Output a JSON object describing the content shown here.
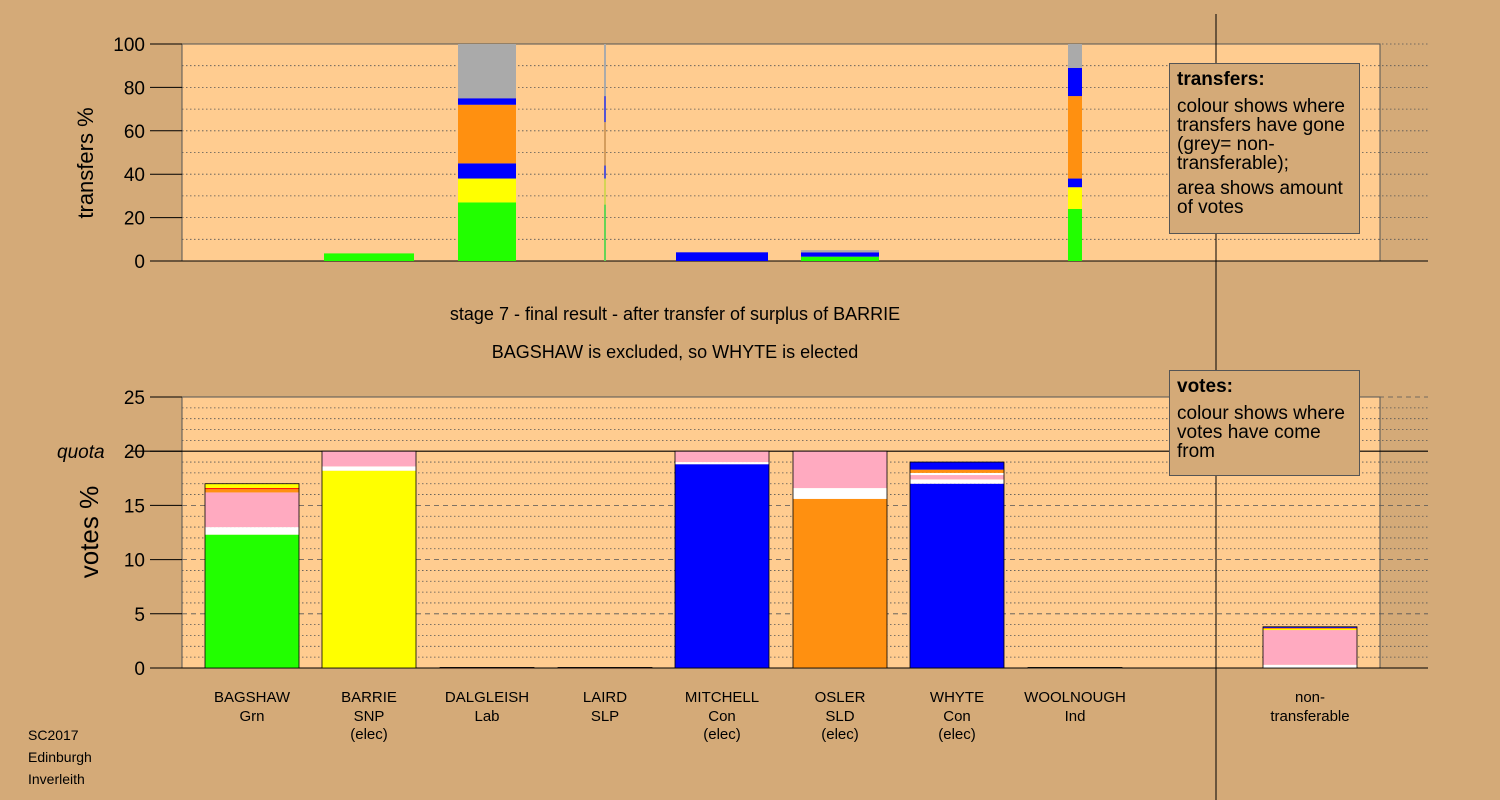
{
  "colors": {
    "Grn": "#22ff00",
    "SNP": "#ffff00",
    "Lab": "#ff0000",
    "SLP": "#ff0000",
    "Con": "#0000ff",
    "SLD": "#ff9010",
    "Ind": "#ffffff",
    "nontrans": "#aaaaaa",
    "other": "#ffaac0",
    "white": "#ffffff"
  },
  "chart_data": [
    {
      "type": "bar",
      "stacked": true,
      "ylabel": "transfers %",
      "ylim": [
        0,
        100
      ],
      "yticks": [
        0,
        20,
        40,
        60,
        80,
        100
      ],
      "categories": [
        "BAGSHAW",
        "BARRIE",
        "DALGLEISH",
        "LAIRD",
        "MITCHELL",
        "OSLER",
        "WHYTE",
        "WOOLNOUGH"
      ],
      "bars": [
        {
          "candidate": "BARRIE",
          "segments": [
            {
              "party": "Grn",
              "value": 3.5
            }
          ]
        },
        {
          "candidate": "DALGLEISH",
          "segments": [
            {
              "party": "Grn",
              "value": 27
            },
            {
              "party": "SNP",
              "value": 11
            },
            {
              "party": "Con",
              "value": 7
            },
            {
              "party": "SLD",
              "value": 27
            },
            {
              "party": "Con",
              "value": 3
            },
            {
              "party": "nontrans",
              "value": 25
            }
          ]
        },
        {
          "candidate": "LAIRD",
          "thin": true,
          "segments": [
            {
              "party": "Grn",
              "value": 26
            },
            {
              "party": "SNP",
              "value": 12
            },
            {
              "party": "Con",
              "value": 6
            },
            {
              "party": "SLD",
              "value": 20
            },
            {
              "party": "Con",
              "value": 12
            },
            {
              "party": "nontrans",
              "value": 24
            }
          ]
        },
        {
          "candidate": "MITCHELL",
          "segments": [
            {
              "party": "Con",
              "value": 4
            }
          ]
        },
        {
          "candidate": "OSLER",
          "segments": [
            {
              "party": "Grn",
              "value": 2
            },
            {
              "party": "Con",
              "value": 2
            },
            {
              "party": "nontrans",
              "value": 1
            }
          ]
        },
        {
          "candidate": "WOOLNOUGH",
          "segments": [
            {
              "party": "Grn",
              "value": 24
            },
            {
              "party": "SNP",
              "value": 10
            },
            {
              "party": "Con",
              "value": 4
            },
            {
              "party": "SLD",
              "value": 38
            },
            {
              "party": "Con",
              "value": 13
            },
            {
              "party": "nontrans",
              "value": 11
            }
          ]
        }
      ]
    },
    {
      "type": "bar",
      "stacked": true,
      "ylabel": "votes %",
      "ylim": [
        0,
        25
      ],
      "yticks": [
        0,
        5,
        10,
        15,
        20,
        25
      ],
      "quota": 20,
      "quota_label": "quota",
      "categories": [
        {
          "name": "BAGSHAW",
          "party": "Grn",
          "note": ""
        },
        {
          "name": "BARRIE",
          "party": "SNP",
          "note": "(elec)"
        },
        {
          "name": "DALGLEISH",
          "party": "Lab",
          "note": ""
        },
        {
          "name": "LAIRD",
          "party": "SLP",
          "note": ""
        },
        {
          "name": "MITCHELL",
          "party": "Con",
          "note": "(elec)"
        },
        {
          "name": "OSLER",
          "party": "SLD",
          "note": "(elec)"
        },
        {
          "name": "WHYTE",
          "party": "Con",
          "note": "(elec)"
        },
        {
          "name": "WOOLNOUGH",
          "party": "Ind",
          "note": ""
        },
        {
          "name": "non-",
          "party": "transferable",
          "note": ""
        }
      ],
      "bars": [
        {
          "candidate": "BAGSHAW",
          "segments": [
            {
              "party": "Grn",
              "value": 12.3
            },
            {
              "party": "white",
              "value": 0.7
            },
            {
              "party": "other",
              "value": 3.2
            },
            {
              "party": "SLD",
              "value": 0.3
            },
            {
              "party": "Lab",
              "value": 0.1
            },
            {
              "party": "SNP",
              "value": 0.4
            }
          ]
        },
        {
          "candidate": "BARRIE",
          "segments": [
            {
              "party": "SNP",
              "value": 18.2
            },
            {
              "party": "white",
              "value": 0.4
            },
            {
              "party": "other",
              "value": 1.4
            }
          ]
        },
        {
          "candidate": "DALGLEISH",
          "segments": [
            {
              "party": "Lab",
              "value": 0.05
            }
          ]
        },
        {
          "candidate": "LAIRD",
          "segments": [
            {
              "party": "SLP",
              "value": 0.05
            }
          ]
        },
        {
          "candidate": "MITCHELL",
          "segments": [
            {
              "party": "Con",
              "value": 18.8
            },
            {
              "party": "white",
              "value": 0.2
            },
            {
              "party": "other",
              "value": 1.0
            }
          ]
        },
        {
          "candidate": "OSLER",
          "segments": [
            {
              "party": "SLD",
              "value": 15.6
            },
            {
              "party": "white",
              "value": 1.0
            },
            {
              "party": "other",
              "value": 3.4
            }
          ]
        },
        {
          "candidate": "WHYTE",
          "segments": [
            {
              "party": "Con",
              "value": 17.0
            },
            {
              "party": "white",
              "value": 0.4
            },
            {
              "party": "other",
              "value": 0.4
            },
            {
              "party": "white",
              "value": 0.2
            },
            {
              "party": "SLD",
              "value": 0.3
            },
            {
              "party": "Con",
              "value": 0.7
            }
          ]
        },
        {
          "candidate": "WOOLNOUGH",
          "segments": [
            {
              "party": "Ind",
              "value": 0.05
            }
          ]
        },
        {
          "candidate": "non-transferable",
          "segments": [
            {
              "party": "white",
              "value": 0.3
            },
            {
              "party": "other",
              "value": 3.2
            },
            {
              "party": "SNP",
              "value": 0.1
            },
            {
              "party": "SLD",
              "value": 0.1
            },
            {
              "party": "Con",
              "value": 0.1
            }
          ]
        }
      ]
    }
  ],
  "heading": {
    "line1": "stage 7 - final result - after transfer of surplus of BARRIE",
    "line2": "BAGSHAW is excluded, so WHYTE is elected"
  },
  "legend_transfers": {
    "title": "transfers:",
    "line1": "colour shows where transfers have gone (grey= non-transferable);",
    "line2": "area shows amount of votes"
  },
  "legend_votes": {
    "title": "votes:",
    "line1": "colour shows where votes have come from"
  },
  "footer": {
    "line1": "SC2017",
    "line2": "Edinburgh",
    "line3": "Inverleith"
  }
}
